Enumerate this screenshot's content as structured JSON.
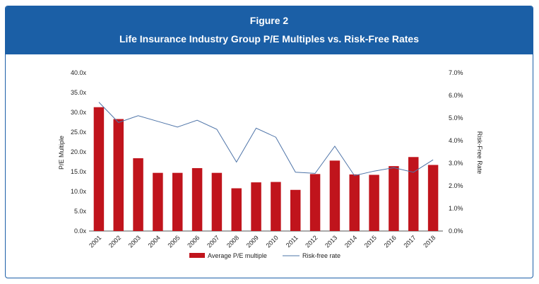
{
  "header": {
    "figure_label": "Figure 2",
    "title": "Life Insurance Industry Group P/E Multiples vs. Risk-Free Rates"
  },
  "colors": {
    "header_bg": "#1b5fa6",
    "bar": "#c0141c",
    "line": "#4e74a8"
  },
  "chart_data": {
    "type": "bar",
    "title": "Life Insurance Industry Group P/E Multiples vs. Risk-Free Rates",
    "categories": [
      "2001",
      "2002",
      "2003",
      "2004",
      "2005",
      "2006",
      "2007",
      "2008",
      "2009",
      "2010",
      "2011",
      "2012",
      "2013",
      "2014",
      "2015",
      "2016",
      "2017",
      "2018"
    ],
    "series": [
      {
        "name": "Average P/E multiple",
        "type": "bar",
        "axis": "left",
        "values": [
          31.3,
          28.3,
          18.4,
          14.7,
          14.7,
          15.9,
          14.7,
          10.8,
          12.3,
          12.4,
          10.4,
          14.4,
          17.8,
          14.3,
          14.2,
          16.4,
          18.7,
          16.7
        ]
      },
      {
        "name": "Risk-free rate",
        "type": "line",
        "axis": "right",
        "values": [
          5.7,
          4.8,
          5.1,
          4.85,
          4.6,
          4.9,
          4.5,
          3.05,
          4.55,
          4.15,
          2.6,
          2.55,
          3.75,
          2.45,
          2.65,
          2.8,
          2.6,
          3.15
        ]
      }
    ],
    "ylabel": "P/E  Multiple",
    "y2label": "Risk-Free Rate",
    "ylim": [
      0,
      40
    ],
    "y2lim": [
      0,
      7
    ],
    "yticks": [
      "0.0x",
      "5.0x",
      "10.0x",
      "15.0x",
      "20.0x",
      "25.0x",
      "30.0x",
      "35.0x",
      "40.0x"
    ],
    "y2ticks": [
      "0.0%",
      "1.0%",
      "2.0%",
      "3.0%",
      "4.0%",
      "5.0%",
      "6.0%",
      "7.0%"
    ],
    "grid": false,
    "legend_position": "bottom"
  }
}
